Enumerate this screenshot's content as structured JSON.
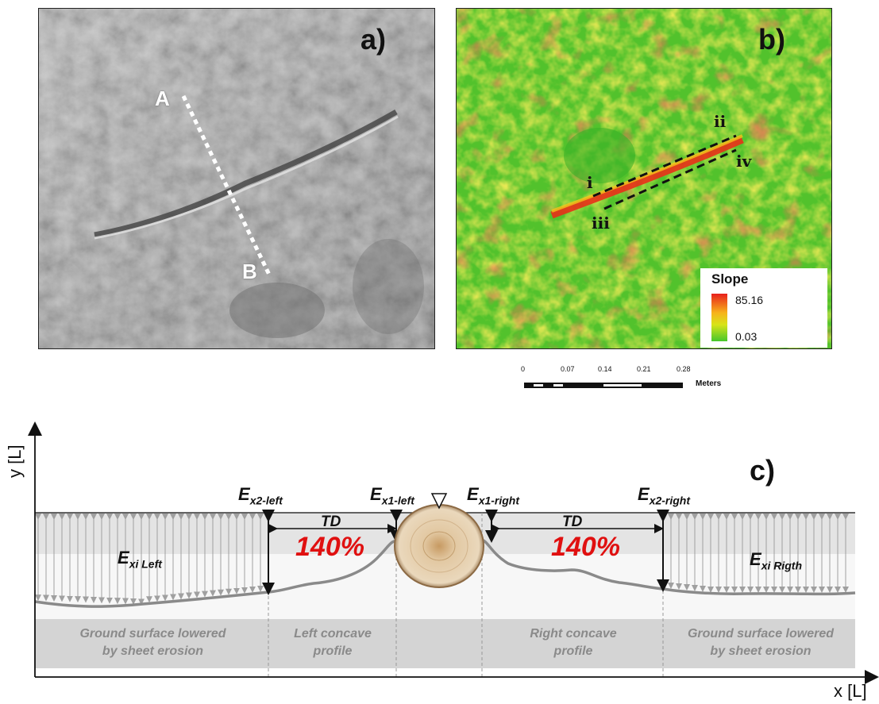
{
  "panels": {
    "a": {
      "label": "a)",
      "point_start": "A",
      "point_end": "B"
    },
    "b": {
      "label": "b)",
      "marks": [
        "i",
        "ii",
        "iii",
        "iv"
      ],
      "legend": {
        "title": "Slope",
        "max": "85.16",
        "min": "0.03",
        "colors": {
          "high": "#e8201c",
          "mid": "#f7b21a",
          "low": "#46c72c"
        }
      },
      "scale": {
        "ticks": [
          "0",
          "0.07",
          "0.14",
          "0.21",
          "0.28"
        ],
        "unit": "Meters"
      }
    },
    "c": {
      "label": "c)",
      "y_axis": "y [L]",
      "x_axis": "x [L]",
      "ex2_left": {
        "base": "E",
        "sub": "x2-left"
      },
      "ex1_left": {
        "base": "E",
        "sub": "x1-left"
      },
      "ex1_right": {
        "base": "E",
        "sub": "x1-right"
      },
      "ex2_right": {
        "base": "E",
        "sub": "x2-right"
      },
      "exi_left": {
        "base": "E",
        "sub": "xi Left"
      },
      "exi_right": {
        "base": "E",
        "sub": "xi Rigth"
      },
      "td_left": "TD",
      "td_right": "TD",
      "pct_left": "140%",
      "pct_right": "140%",
      "zones": {
        "ground_left_1": "Ground surface lowered",
        "ground_left_2": "by sheet erosion",
        "left_profile_1": "Left  concave",
        "left_profile_2": "profile",
        "right_profile_1": "Right  concave",
        "right_profile_2": "profile",
        "ground_right_1": "Ground surface lowered",
        "ground_right_2": "by sheet erosion"
      },
      "colors": {
        "percent": "#e01010",
        "zone_text": "#8a8a8a",
        "profile": "#8a8a8a"
      }
    }
  }
}
